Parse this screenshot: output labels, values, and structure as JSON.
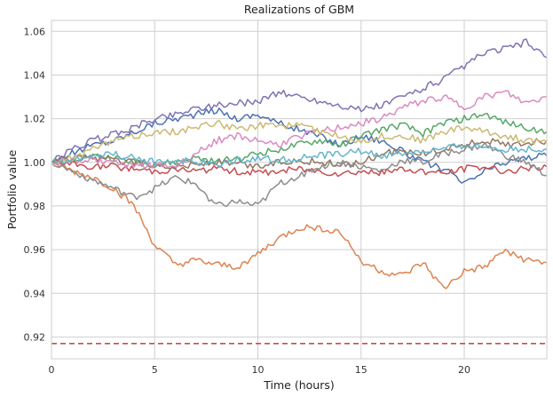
{
  "chart_data": {
    "type": "line",
    "title": "Realizations of GBM",
    "xlabel": "Time (hours)",
    "ylabel": "Portfolio value",
    "xlim": [
      0,
      24
    ],
    "ylim": [
      0.91,
      1.065
    ],
    "xticks": [
      0,
      5,
      10,
      15,
      20
    ],
    "xtick_labels": [
      "0",
      "5",
      "10",
      "15",
      "20"
    ],
    "yticks": [
      0.92,
      0.94,
      0.96,
      0.98,
      1.0,
      1.02,
      1.04,
      1.06
    ],
    "ytick_labels": [
      "0.92",
      "0.94",
      "0.96",
      "0.98",
      "1.00",
      "1.02",
      "1.04",
      "1.06"
    ],
    "grid": true,
    "legend": "none",
    "x": [
      0,
      1,
      2,
      3,
      4,
      5,
      6,
      7,
      8,
      9,
      10,
      11,
      12,
      13,
      14,
      15,
      16,
      17,
      18,
      19,
      20,
      21,
      22,
      23,
      24
    ],
    "series": [
      {
        "color": "#4c72b0",
        "values": [
          1.0,
          1.004,
          1.008,
          1.01,
          1.014,
          1.018,
          1.02,
          1.022,
          1.024,
          1.02,
          1.022,
          1.018,
          1.015,
          1.012,
          1.008,
          1.012,
          1.01,
          1.005,
          1.0,
          0.997,
          0.99,
          0.996,
          1.0,
          1.002,
          1.003
        ]
      },
      {
        "color": "#dd8452",
        "values": [
          1.0,
          0.996,
          0.993,
          0.988,
          0.98,
          0.962,
          0.953,
          0.955,
          0.953,
          0.952,
          0.958,
          0.965,
          0.97,
          0.97,
          0.968,
          0.955,
          0.95,
          0.948,
          0.954,
          0.942,
          0.95,
          0.952,
          0.96,
          0.955,
          0.954
        ]
      },
      {
        "color": "#55a868",
        "values": [
          1.0,
          1.002,
          1.003,
          1.002,
          1.0,
          0.999,
          1.0,
          1.002,
          1.0,
          1.002,
          1.004,
          1.006,
          1.008,
          1.01,
          1.008,
          1.012,
          1.015,
          1.017,
          1.013,
          1.018,
          1.02,
          1.022,
          1.018,
          1.016,
          1.014
        ]
      },
      {
        "color": "#c44e52",
        "values": [
          1.0,
          0.999,
          0.998,
          0.998,
          0.997,
          0.996,
          0.997,
          0.996,
          0.997,
          0.996,
          0.995,
          0.996,
          0.997,
          0.996,
          0.995,
          0.996,
          0.995,
          0.997,
          0.996,
          0.995,
          0.997,
          0.998,
          0.996,
          0.997,
          0.998
        ]
      },
      {
        "color": "#8172b3",
        "values": [
          1.0,
          1.006,
          1.01,
          1.013,
          1.016,
          1.02,
          1.022,
          1.025,
          1.026,
          1.027,
          1.028,
          1.032,
          1.03,
          1.028,
          1.026,
          1.024,
          1.026,
          1.03,
          1.034,
          1.038,
          1.044,
          1.05,
          1.052,
          1.055,
          1.048
        ]
      },
      {
        "color": "#937860",
        "values": [
          1.0,
          1.002,
          1.002,
          1.001,
          1.0,
          0.999,
          0.998,
          0.999,
          1.0,
          0.999,
          0.998,
          1.0,
          1.001,
          1.0,
          0.999,
          1.0,
          1.004,
          1.005,
          1.004,
          1.006,
          1.008,
          1.01,
          1.008,
          1.009,
          1.01
        ]
      },
      {
        "color": "#da8bc3",
        "values": [
          1.0,
          1.001,
          1.001,
          1.0,
          0.998,
          0.999,
          0.998,
          1.004,
          1.01,
          1.012,
          1.01,
          1.008,
          1.012,
          1.014,
          1.016,
          1.018,
          1.02,
          1.025,
          1.028,
          1.03,
          1.025,
          1.03,
          1.032,
          1.027,
          1.03
        ]
      },
      {
        "color": "#8c8c8c",
        "values": [
          1.0,
          0.996,
          0.992,
          0.988,
          0.984,
          0.988,
          0.993,
          0.99,
          0.98,
          0.982,
          0.98,
          0.99,
          0.994,
          0.998,
          1.0,
          0.998,
          0.996,
          1.001,
          1.0,
          1.004,
          1.006,
          1.008,
          1.003,
          1.0,
          0.994
        ]
      },
      {
        "color": "#ccb974",
        "values": [
          1.0,
          1.002,
          1.006,
          1.01,
          1.012,
          1.014,
          1.014,
          1.016,
          1.018,
          1.015,
          1.017,
          1.016,
          1.018,
          1.014,
          1.012,
          1.01,
          1.012,
          1.012,
          1.01,
          1.014,
          1.016,
          1.014,
          1.012,
          1.01,
          1.009
        ]
      },
      {
        "color": "#64b5cd",
        "values": [
          1.0,
          1.001,
          1.003,
          1.004,
          1.002,
          1.0,
          1.001,
          1.0,
          0.999,
          1.001,
          1.002,
          1.001,
          1.002,
          1.003,
          1.004,
          1.005,
          1.003,
          1.004,
          1.005,
          1.006,
          1.008,
          1.007,
          1.006,
          1.006,
          1.006
        ]
      }
    ],
    "reference_line": {
      "y": 0.917,
      "color": "#c44e52",
      "style": "dashed"
    }
  }
}
